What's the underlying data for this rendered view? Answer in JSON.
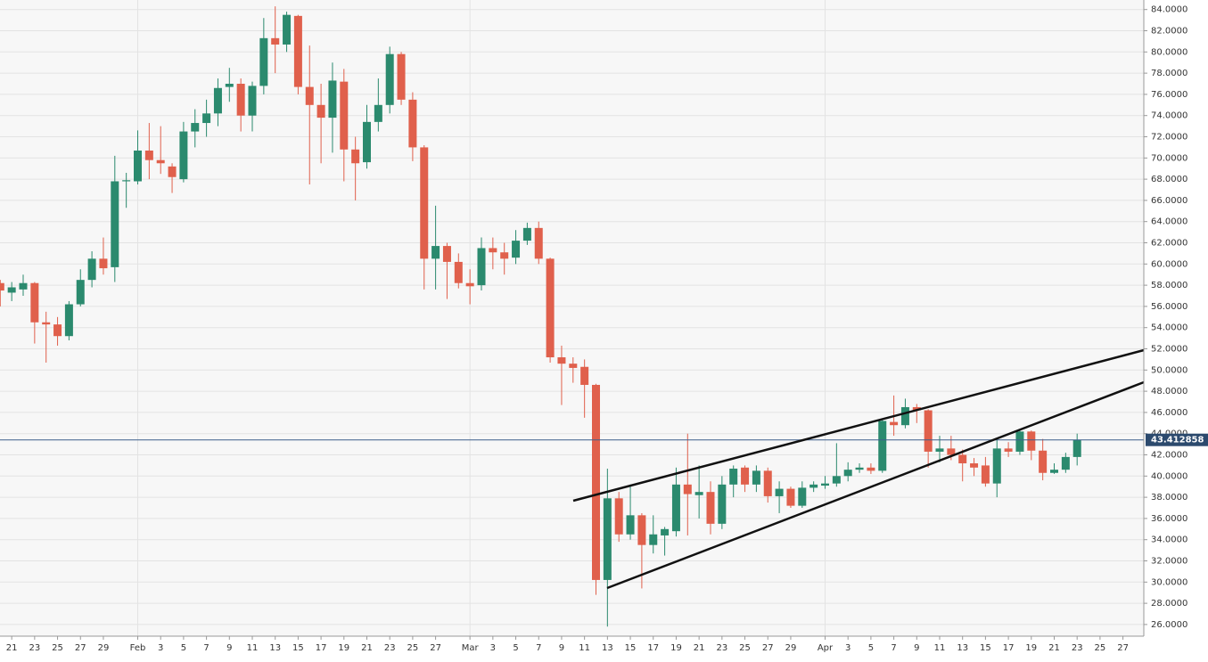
{
  "chart_data": {
    "type": "candlestick",
    "up_color": "#2b8a6e",
    "down_color": "#e0604c",
    "grid": true,
    "ylim": [
      24.9,
      84.9
    ],
    "yticks": [
      {
        "value": 26,
        "label": "26.0000"
      },
      {
        "value": 28,
        "label": "28.0000"
      },
      {
        "value": 30,
        "label": "30.0000"
      },
      {
        "value": 32,
        "label": "32.0000"
      },
      {
        "value": 34,
        "label": "34.0000"
      },
      {
        "value": 36,
        "label": "36.0000"
      },
      {
        "value": 38,
        "label": "38.0000"
      },
      {
        "value": 40,
        "label": "40.0000"
      },
      {
        "value": 42,
        "label": "42.0000"
      },
      {
        "value": 44,
        "label": "44.0000"
      },
      {
        "value": 46,
        "label": "46.0000"
      },
      {
        "value": 48,
        "label": "48.0000"
      },
      {
        "value": 50,
        "label": "50.0000"
      },
      {
        "value": 52,
        "label": "52.0000"
      },
      {
        "value": 54,
        "label": "54.0000"
      },
      {
        "value": 56,
        "label": "56.0000"
      },
      {
        "value": 58,
        "label": "58.0000"
      },
      {
        "value": 60,
        "label": "60.0000"
      },
      {
        "value": 62,
        "label": "62.0000"
      },
      {
        "value": 64,
        "label": "64.0000"
      },
      {
        "value": 66,
        "label": "66.0000"
      },
      {
        "value": 68,
        "label": "68.0000"
      },
      {
        "value": 70,
        "label": "70.0000"
      },
      {
        "value": 72,
        "label": "72.0000"
      },
      {
        "value": 74,
        "label": "74.0000"
      },
      {
        "value": 76,
        "label": "76.0000"
      },
      {
        "value": 78,
        "label": "78.0000"
      },
      {
        "value": 80,
        "label": "80.0000"
      },
      {
        "value": 82,
        "label": "82.0000"
      },
      {
        "value": 84,
        "label": "84.0000"
      }
    ],
    "price_line": 43.412858,
    "categories": [
      null,
      "21",
      null,
      "23",
      null,
      "25",
      null,
      "27",
      null,
      "29",
      null,
      null,
      "Feb",
      null,
      "3",
      null,
      "5",
      null,
      "7",
      null,
      "9",
      null,
      "11",
      null,
      "13",
      null,
      "15",
      null,
      "17",
      null,
      "19",
      null,
      "21",
      null,
      "23",
      null,
      "25",
      null,
      "27",
      null,
      null,
      "Mar",
      null,
      "3",
      null,
      "5",
      null,
      "7",
      null,
      "9",
      null,
      "11",
      null,
      "13",
      null,
      "15",
      null,
      "17",
      null,
      "19",
      null,
      "21",
      null,
      "23",
      null,
      "25",
      null,
      "27",
      null,
      "29",
      null,
      null,
      "Apr",
      null,
      "3",
      null,
      "5",
      null,
      "7",
      null,
      "9",
      null,
      "11",
      null,
      "13",
      null,
      "15",
      null,
      "17",
      null,
      "19",
      null,
      "21",
      null,
      "23",
      null,
      "25",
      null,
      "27"
    ],
    "open": [
      58.2,
      57.3,
      57.6,
      58.2,
      54.5,
      54.3,
      53.2,
      56.2,
      58.5,
      60.5,
      59.7,
      67.8,
      67.8,
      70.7,
      69.8,
      69.2,
      68,
      72.5,
      73.3,
      74.2,
      76.7,
      77,
      74,
      76.8,
      81.3,
      80.7,
      83.4,
      76.7,
      75,
      73.8,
      77.2,
      70.8,
      69.6,
      73.4,
      75,
      79.8,
      75.5,
      71,
      60.5,
      61.7,
      60.2,
      58.2,
      58,
      61.5,
      61.1,
      60.6,
      62.2,
      63.4,
      60.5,
      51.2,
      50.6,
      50.3,
      48.6,
      30.2,
      37.9,
      34.5,
      36.3,
      33.5,
      34.4,
      34.8,
      39.2,
      38.2,
      38.5,
      35.5,
      39.2,
      40.8,
      39.2,
      40.5,
      38.1,
      38.8,
      37.2,
      38.9,
      39.1,
      39.3,
      40,
      40.6,
      40.8,
      40.5,
      45.1,
      44.8,
      46.5,
      46.2,
      42.3,
      42.6,
      42,
      41.2,
      41,
      39.3,
      42.6,
      42.3,
      44.2,
      42.4,
      40.3,
      40.6,
      41.8,
      null,
      null,
      null,
      null
    ],
    "high": [
      58.5,
      58.3,
      59,
      58.3,
      55.5,
      55,
      56.5,
      59.5,
      61.2,
      62.5,
      70.2,
      68.6,
      72.6,
      73.3,
      73,
      69.5,
      73.4,
      74.6,
      75.5,
      77.5,
      78.5,
      77.5,
      77.2,
      83.2,
      84.3,
      83.8,
      83.5,
      80.6,
      77,
      79,
      78.4,
      72,
      75,
      77.5,
      80.5,
      80,
      76.2,
      71.2,
      65.5,
      62,
      61,
      59.5,
      62.5,
      62.5,
      62,
      63.2,
      63.9,
      64,
      60.6,
      52.3,
      51.2,
      51,
      48.7,
      40.7,
      38.5,
      39.2,
      36.5,
      36.3,
      35.2,
      40.8,
      44,
      41,
      39.5,
      40,
      41,
      41,
      41,
      40.8,
      39.5,
      39,
      39.5,
      39.5,
      40,
      43.1,
      41.3,
      41.2,
      41.2,
      45.4,
      47.6,
      47.3,
      46.8,
      46.3,
      43.8,
      43.8,
      42.5,
      41.7,
      41.8,
      43.4,
      43.2,
      44.4,
      44.3,
      43.5,
      41.2,
      42.2,
      44,
      null,
      null,
      null,
      null
    ],
    "low": [
      56,
      56.5,
      57,
      52.5,
      50.7,
      52.3,
      52.8,
      56,
      57.8,
      59,
      58.3,
      65.3,
      67.5,
      68,
      68.5,
      66.7,
      67.7,
      71,
      72,
      73,
      75.3,
      72.5,
      72.5,
      76,
      78,
      80,
      76,
      67.5,
      69.5,
      70.5,
      67.8,
      66,
      69,
      72.5,
      74.2,
      75,
      69.7,
      57.6,
      57.6,
      56.7,
      57.7,
      56.2,
      57.5,
      59.5,
      59,
      60,
      61.8,
      60,
      50.7,
      46.7,
      48.8,
      45.5,
      28.8,
      25.8,
      33.8,
      34,
      29.4,
      32.7,
      32.5,
      34.3,
      34.4,
      36,
      34.5,
      35,
      38,
      38.5,
      38.5,
      37.5,
      36.5,
      37,
      37,
      38.5,
      38.8,
      39,
      39.5,
      40.3,
      40.2,
      40.3,
      43.8,
      44.5,
      45,
      40.8,
      41.3,
      41.5,
      39.5,
      40,
      39,
      38,
      41.8,
      42,
      41.5,
      39.6,
      40.2,
      40.3,
      41,
      null,
      null,
      null,
      null
    ],
    "close": [
      57.5,
      57.8,
      58.2,
      54.5,
      54.3,
      53.2,
      56.2,
      58.5,
      60.5,
      59.6,
      67.8,
      67.9,
      70.7,
      69.8,
      69.5,
      68.2,
      72.5,
      73.3,
      74.2,
      76.6,
      77,
      74,
      76.8,
      81.3,
      80.7,
      83.5,
      76.7,
      75,
      73.8,
      77.3,
      70.8,
      69.5,
      73.4,
      75,
      79.8,
      75.5,
      71,
      60.5,
      61.7,
      60.2,
      58.2,
      57.9,
      61.5,
      61.1,
      60.5,
      62.2,
      63.4,
      60.5,
      51.2,
      50.6,
      50.2,
      48.6,
      30.2,
      37.9,
      34.5,
      36.3,
      33.5,
      34.5,
      35,
      39.2,
      38.3,
      38.5,
      35.5,
      39.2,
      40.7,
      39.2,
      40.5,
      38.1,
      38.8,
      37.2,
      38.9,
      39.2,
      39.3,
      40,
      40.6,
      40.8,
      40.5,
      45.2,
      44.8,
      46.5,
      46.2,
      42.3,
      42.6,
      42,
      41.2,
      40.8,
      39.3,
      42.6,
      42.3,
      44.2,
      42.4,
      40.3,
      40.6,
      41.8,
      43.4,
      null,
      null,
      null,
      null
    ]
  }
}
